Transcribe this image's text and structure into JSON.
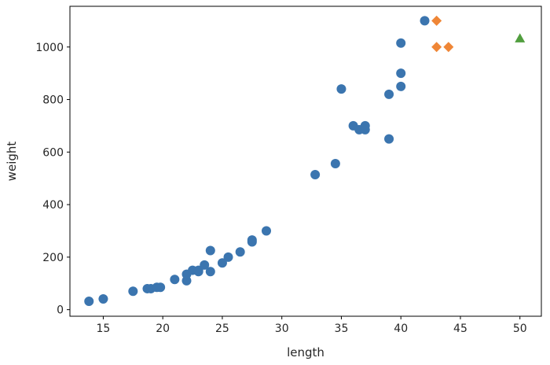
{
  "chart_data": {
    "type": "scatter",
    "title": "",
    "xlabel": "length",
    "ylabel": "weight",
    "xlim": [
      12.2,
      51.8
    ],
    "ylim": [
      -25,
      1155
    ],
    "xticks": [
      15,
      20,
      25,
      30,
      35,
      40,
      45,
      50
    ],
    "yticks": [
      0,
      200,
      400,
      600,
      800,
      1000
    ],
    "grid": false,
    "legend": "none",
    "series": [
      {
        "marker": "circle",
        "color": "#3b75af",
        "points": [
          [
            13.8,
            32
          ],
          [
            15.0,
            41
          ],
          [
            17.5,
            70
          ],
          [
            18.7,
            80
          ],
          [
            19.0,
            80
          ],
          [
            19.5,
            85
          ],
          [
            19.8,
            85
          ],
          [
            21.0,
            115
          ],
          [
            22.0,
            110
          ],
          [
            22.0,
            135
          ],
          [
            22.5,
            150
          ],
          [
            23.0,
            145
          ],
          [
            23.0,
            150
          ],
          [
            23.5,
            170
          ],
          [
            24.0,
            145
          ],
          [
            24.0,
            225
          ],
          [
            25.0,
            178
          ],
          [
            25.5,
            200
          ],
          [
            26.5,
            220
          ],
          [
            27.5,
            258
          ],
          [
            27.5,
            265
          ],
          [
            28.7,
            300
          ],
          [
            32.8,
            514
          ],
          [
            34.5,
            556
          ],
          [
            35.0,
            840
          ],
          [
            36.0,
            700
          ],
          [
            36.5,
            685
          ],
          [
            37.0,
            685
          ],
          [
            37.0,
            700
          ],
          [
            39.0,
            820
          ],
          [
            39.0,
            650
          ],
          [
            40.0,
            850
          ],
          [
            40.0,
            900
          ],
          [
            40.0,
            1015
          ],
          [
            42.0,
            1100
          ]
        ]
      },
      {
        "marker": "diamond",
        "color": "#ef8636",
        "points": [
          [
            43.0,
            1100
          ],
          [
            43.0,
            1000
          ],
          [
            44.0,
            1000
          ]
        ]
      },
      {
        "marker": "triangle",
        "color": "#519e3e",
        "points": [
          [
            50.0,
            1033
          ]
        ]
      }
    ]
  }
}
